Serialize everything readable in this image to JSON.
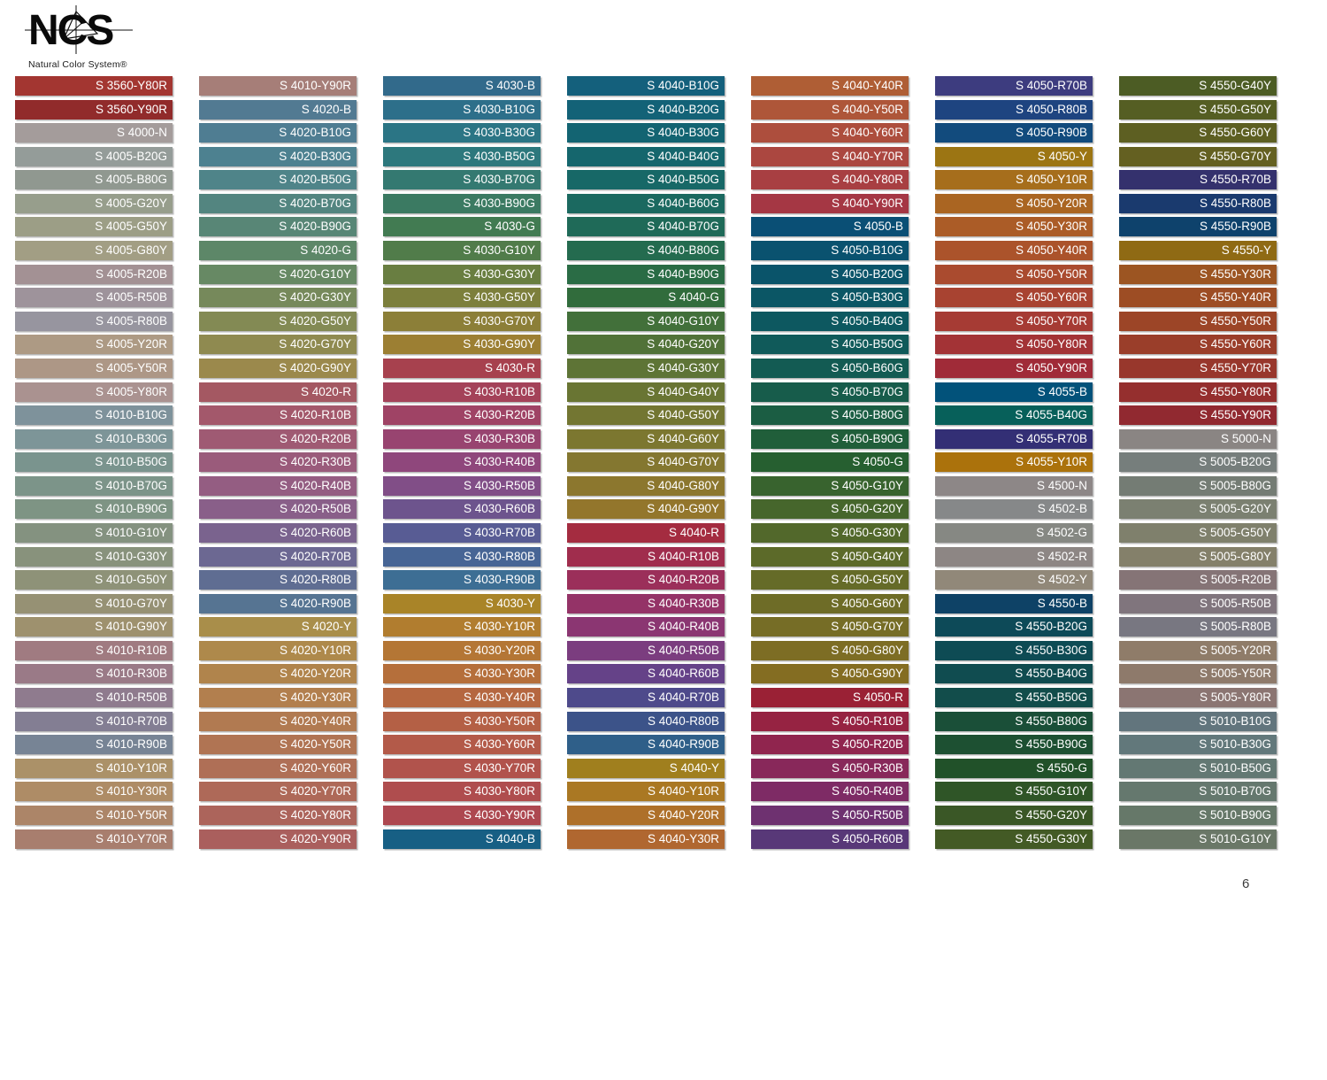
{
  "logo": {
    "text": "NCS",
    "subtitle": "Natural Color System®"
  },
  "page": {
    "number": "6"
  },
  "columns": [
    {
      "swatches": [
        {
          "code": "S 3560-Y80R",
          "color": "#A33631"
        },
        {
          "code": "S 3560-Y90R",
          "color": "#912B2B"
        },
        {
          "code": "S 4000-N",
          "color": "#A49C9B"
        },
        {
          "code": "S 4005-B20G",
          "color": "#949C99"
        },
        {
          "code": "S 4005-B80G",
          "color": "#909890"
        },
        {
          "code": "S 4005-G20Y",
          "color": "#979E8C"
        },
        {
          "code": "S 4005-G50Y",
          "color": "#9C9E86"
        },
        {
          "code": "S 4005-G80Y",
          "color": "#A29E84"
        },
        {
          "code": "S 4005-R20B",
          "color": "#A39194"
        },
        {
          "code": "S 4005-R50B",
          "color": "#9E939B"
        },
        {
          "code": "S 4005-R80B",
          "color": "#97959F"
        },
        {
          "code": "S 4005-Y20R",
          "color": "#AD9A84"
        },
        {
          "code": "S 4005-Y50R",
          "color": "#AD9786"
        },
        {
          "code": "S 4005-Y80R",
          "color": "#AA9290"
        },
        {
          "code": "S 4010-B10G",
          "color": "#7E929B"
        },
        {
          "code": "S 4010-B30G",
          "color": "#7D9598"
        },
        {
          "code": "S 4010-B50G",
          "color": "#7A948E"
        },
        {
          "code": "S 4010-B70G",
          "color": "#7C9489"
        },
        {
          "code": "S 4010-B90G",
          "color": "#7E9484"
        },
        {
          "code": "S 4010-G10Y",
          "color": "#849280"
        },
        {
          "code": "S 4010-G30Y",
          "color": "#88927C"
        },
        {
          "code": "S 4010-G50Y",
          "color": "#8E9278"
        },
        {
          "code": "S 4010-G70Y",
          "color": "#969174"
        },
        {
          "code": "S 4010-G90Y",
          "color": "#9E916E"
        },
        {
          "code": "S 4010-R10B",
          "color": "#A07B81"
        },
        {
          "code": "S 4010-R30B",
          "color": "#9A7A87"
        },
        {
          "code": "S 4010-R50B",
          "color": "#8F7B8E"
        },
        {
          "code": "S 4010-R70B",
          "color": "#837E93"
        },
        {
          "code": "S 4010-R90B",
          "color": "#778495"
        },
        {
          "code": "S 4010-Y10R",
          "color": "#AB9168"
        },
        {
          "code": "S 4010-Y30R",
          "color": "#AE8C66"
        },
        {
          "code": "S 4010-Y50R",
          "color": "#AC8568"
        },
        {
          "code": "S 4010-Y70R",
          "color": "#A87E6E"
        }
      ]
    },
    {
      "swatches": [
        {
          "code": "S 4010-Y90R",
          "color": "#A67E78"
        },
        {
          "code": "S 4020-B",
          "color": "#527A92"
        },
        {
          "code": "S 4020-B10G",
          "color": "#4F7D92"
        },
        {
          "code": "S 4020-B30G",
          "color": "#4D8190"
        },
        {
          "code": "S 4020-B50G",
          "color": "#4F8489"
        },
        {
          "code": "S 4020-B70G",
          "color": "#538580"
        },
        {
          "code": "S 4020-B90G",
          "color": "#588676"
        },
        {
          "code": "S 4020-G",
          "color": "#5D8768"
        },
        {
          "code": "S 4020-G10Y",
          "color": "#678964"
        },
        {
          "code": "S 4020-G30Y",
          "color": "#76895B"
        },
        {
          "code": "S 4020-G50Y",
          "color": "#838A54"
        },
        {
          "code": "S 4020-G70Y",
          "color": "#8F8A50"
        },
        {
          "code": "S 4020-G90Y",
          "color": "#9B894C"
        },
        {
          "code": "S 4020-R",
          "color": "#A45862"
        },
        {
          "code": "S 4020-R10B",
          "color": "#A3586B"
        },
        {
          "code": "S 4020-R20B",
          "color": "#9F5A73"
        },
        {
          "code": "S 4020-R30B",
          "color": "#9A5B7B"
        },
        {
          "code": "S 4020-R40B",
          "color": "#945D82"
        },
        {
          "code": "S 4020-R50B",
          "color": "#895F89"
        },
        {
          "code": "S 4020-R60B",
          "color": "#7A638E"
        },
        {
          "code": "S 4020-R70B",
          "color": "#6C6892"
        },
        {
          "code": "S 4020-R80B",
          "color": "#5F6D92"
        },
        {
          "code": "S 4020-R90B",
          "color": "#567492"
        },
        {
          "code": "S 4020-Y",
          "color": "#A98E4A"
        },
        {
          "code": "S 4020-Y10R",
          "color": "#AE894B"
        },
        {
          "code": "S 4020-Y20R",
          "color": "#B0844C"
        },
        {
          "code": "S 4020-Y30R",
          "color": "#B27F4E"
        },
        {
          "code": "S 4020-Y40R",
          "color": "#B17A51"
        },
        {
          "code": "S 4020-Y50R",
          "color": "#B07453"
        },
        {
          "code": "S 4020-Y60R",
          "color": "#AF6F56"
        },
        {
          "code": "S 4020-Y70R",
          "color": "#AE6958"
        },
        {
          "code": "S 4020-Y80R",
          "color": "#AC645B"
        },
        {
          "code": "S 4020-Y90R",
          "color": "#AA5F5D"
        }
      ]
    },
    {
      "swatches": [
        {
          "code": "S 4030-B",
          "color": "#326A8B"
        },
        {
          "code": "S 4030-B10G",
          "color": "#2D6F8A"
        },
        {
          "code": "S 4030-B30G",
          "color": "#2B7585"
        },
        {
          "code": "S 4030-B50G",
          "color": "#2D787D"
        },
        {
          "code": "S 4030-B70G",
          "color": "#347971"
        },
        {
          "code": "S 4030-B90G",
          "color": "#3B7A62"
        },
        {
          "code": "S 4030-G",
          "color": "#427B52"
        },
        {
          "code": "S 4030-G10Y",
          "color": "#517C4A"
        },
        {
          "code": "S 4030-G30Y",
          "color": "#697E41"
        },
        {
          "code": "S 4030-G50Y",
          "color": "#7C7F3C"
        },
        {
          "code": "S 4030-G70Y",
          "color": "#8C7F38"
        },
        {
          "code": "S 4030-G90Y",
          "color": "#9C7F33"
        },
        {
          "code": "S 4030-R",
          "color": "#A7414E"
        },
        {
          "code": "S 4030-R10B",
          "color": "#A44259"
        },
        {
          "code": "S 4030-R20B",
          "color": "#9F4365"
        },
        {
          "code": "S 4030-R30B",
          "color": "#984470"
        },
        {
          "code": "S 4030-R40B",
          "color": "#8F477C"
        },
        {
          "code": "S 4030-R50B",
          "color": "#814E87"
        },
        {
          "code": "S 4030-R60B",
          "color": "#6D548D"
        },
        {
          "code": "S 4030-R70B",
          "color": "#585C94"
        },
        {
          "code": "S 4030-R80B",
          "color": "#476595"
        },
        {
          "code": "S 4030-R90B",
          "color": "#3D6E94"
        },
        {
          "code": "S 4030-Y",
          "color": "#A98428"
        },
        {
          "code": "S 4030-Y10R",
          "color": "#B17D2F"
        },
        {
          "code": "S 4030-Y20R",
          "color": "#B47635"
        },
        {
          "code": "S 4030-Y30R",
          "color": "#B56F3B"
        },
        {
          "code": "S 4030-Y40R",
          "color": "#B56740"
        },
        {
          "code": "S 4030-Y50R",
          "color": "#B46045"
        },
        {
          "code": "S 4030-Y60R",
          "color": "#B35A49"
        },
        {
          "code": "S 4030-Y70R",
          "color": "#B1534C"
        },
        {
          "code": "S 4030-Y80R",
          "color": "#AF4D4E"
        },
        {
          "code": "S 4030-Y90R",
          "color": "#AD4850"
        },
        {
          "code": "S 4040-B",
          "color": "#175F84"
        }
      ]
    },
    {
      "swatches": [
        {
          "code": "S 4040-B10G",
          "color": "#14607C"
        },
        {
          "code": "S 4040-B20G",
          "color": "#136277"
        },
        {
          "code": "S 4040-B30G",
          "color": "#136472"
        },
        {
          "code": "S 4040-B40G",
          "color": "#15666D"
        },
        {
          "code": "S 4040-B50G",
          "color": "#176867"
        },
        {
          "code": "S 4040-B60G",
          "color": "#1B6960"
        },
        {
          "code": "S 4040-B70G",
          "color": "#1F6A58"
        },
        {
          "code": "S 4040-B80G",
          "color": "#246B4F"
        },
        {
          "code": "S 4040-B90G",
          "color": "#2A6C45"
        },
        {
          "code": "S 4040-G",
          "color": "#316C3C"
        },
        {
          "code": "S 4040-G10Y",
          "color": "#42703A"
        },
        {
          "code": "S 4040-G20Y",
          "color": "#517238"
        },
        {
          "code": "S 4040-G30Y",
          "color": "#5E7436"
        },
        {
          "code": "S 4040-G40Y",
          "color": "#697533"
        },
        {
          "code": "S 4040-G50Y",
          "color": "#737632"
        },
        {
          "code": "S 4040-G60Y",
          "color": "#7C7730"
        },
        {
          "code": "S 4040-G70Y",
          "color": "#847730"
        },
        {
          "code": "S 4040-G80Y",
          "color": "#8C772E"
        },
        {
          "code": "S 4040-G90Y",
          "color": "#93762C"
        },
        {
          "code": "S 4040-R",
          "color": "#A42C40"
        },
        {
          "code": "S 4040-R10B",
          "color": "#A02D4D"
        },
        {
          "code": "S 4040-R20B",
          "color": "#9B2F5A"
        },
        {
          "code": "S 4040-R30B",
          "color": "#943367"
        },
        {
          "code": "S 4040-R40B",
          "color": "#8B3672"
        },
        {
          "code": "S 4040-R50B",
          "color": "#7B3D7F"
        },
        {
          "code": "S 4040-R60B",
          "color": "#654288"
        },
        {
          "code": "S 4040-R70B",
          "color": "#4E4A8B"
        },
        {
          "code": "S 4040-R80B",
          "color": "#3C5389"
        },
        {
          "code": "S 4040-R90B",
          "color": "#2F5F89"
        },
        {
          "code": "S 4040-Y",
          "color": "#A07F1E"
        },
        {
          "code": "S 4040-Y10R",
          "color": "#AA7823"
        },
        {
          "code": "S 4040-Y20R",
          "color": "#AE702A"
        },
        {
          "code": "S 4040-Y30R",
          "color": "#B06730"
        }
      ]
    },
    {
      "swatches": [
        {
          "code": "S 4040-Y40R",
          "color": "#AF5E35"
        },
        {
          "code": "S 4040-Y50R",
          "color": "#AE5639"
        },
        {
          "code": "S 4040-Y60R",
          "color": "#AD4E3D"
        },
        {
          "code": "S 4040-Y70R",
          "color": "#AB4740"
        },
        {
          "code": "S 4040-Y80R",
          "color": "#A83F42"
        },
        {
          "code": "S 4040-Y90R",
          "color": "#A53744"
        },
        {
          "code": "S 4050-B",
          "color": "#0A4F75"
        },
        {
          "code": "S 4050-B10G",
          "color": "#0A526F"
        },
        {
          "code": "S 4050-B20G",
          "color": "#0A546A"
        },
        {
          "code": "S 4050-B30G",
          "color": "#0B5665"
        },
        {
          "code": "S 4050-B40G",
          "color": "#0D5860"
        },
        {
          "code": "S 4050-B50G",
          "color": "#105A5A"
        },
        {
          "code": "S 4050-B60G",
          "color": "#135B53"
        },
        {
          "code": "S 4050-B70G",
          "color": "#175C4B"
        },
        {
          "code": "S 4050-B80G",
          "color": "#1B5D43"
        },
        {
          "code": "S 4050-B90G",
          "color": "#205E3A"
        },
        {
          "code": "S 4050-G",
          "color": "#265F30"
        },
        {
          "code": "S 4050-G10Y",
          "color": "#38632E"
        },
        {
          "code": "S 4050-G20Y",
          "color": "#46662C"
        },
        {
          "code": "S 4050-G30Y",
          "color": "#52682B"
        },
        {
          "code": "S 4050-G40Y",
          "color": "#5C6A29"
        },
        {
          "code": "S 4050-G50Y",
          "color": "#656B28"
        },
        {
          "code": "S 4050-G60Y",
          "color": "#6E6C27"
        },
        {
          "code": "S 4050-G70Y",
          "color": "#766D26"
        },
        {
          "code": "S 4050-G80Y",
          "color": "#7D6D24"
        },
        {
          "code": "S 4050-G90Y",
          "color": "#846D22"
        },
        {
          "code": "S 4050-R",
          "color": "#9A2135"
        },
        {
          "code": "S 4050-R10B",
          "color": "#962342"
        },
        {
          "code": "S 4050-R20B",
          "color": "#90254E"
        },
        {
          "code": "S 4050-R30B",
          "color": "#88285A"
        },
        {
          "code": "S 4050-R40B",
          "color": "#7E2B65"
        },
        {
          "code": "S 4050-R50B",
          "color": "#6E3170"
        },
        {
          "code": "S 4050-R60B",
          "color": "#583878"
        }
      ]
    },
    {
      "swatches": [
        {
          "code": "S 4050-R70B",
          "color": "#3D3C7F"
        },
        {
          "code": "S 4050-R80B",
          "color": "#1E4480"
        },
        {
          "code": "S 4050-R90B",
          "color": "#124B7D"
        },
        {
          "code": "S 4050-Y",
          "color": "#9C7513"
        },
        {
          "code": "S 4050-Y10R",
          "color": "#A66E1C"
        },
        {
          "code": "S 4050-Y20R",
          "color": "#AA6522"
        },
        {
          "code": "S 4050-Y30R",
          "color": "#AB5C27"
        },
        {
          "code": "S 4050-Y40R",
          "color": "#AB532B"
        },
        {
          "code": "S 4050-Y50R",
          "color": "#AA4B2F"
        },
        {
          "code": "S 4050-Y60R",
          "color": "#A84331"
        },
        {
          "code": "S 4050-Y70R",
          "color": "#A63B34"
        },
        {
          "code": "S 4050-Y80R",
          "color": "#A33336"
        },
        {
          "code": "S 4050-Y90R",
          "color": "#A02B38"
        },
        {
          "code": "S 4055-B",
          "color": "#02527A"
        },
        {
          "code": "S 4055-B40G",
          "color": "#07605A"
        },
        {
          "code": "S 4055-R70B",
          "color": "#332F75"
        },
        {
          "code": "S 4055-Y10R",
          "color": "#AB720C"
        },
        {
          "code": "S 4500-N",
          "color": "#8D8787"
        },
        {
          "code": "S 4502-B",
          "color": "#868889"
        },
        {
          "code": "S 4502-G",
          "color": "#868883"
        },
        {
          "code": "S 4502-R",
          "color": "#8D8684"
        },
        {
          "code": "S 4502-Y",
          "color": "#918879"
        },
        {
          "code": "S 4550-B",
          "color": "#0E4266"
        },
        {
          "code": "S 4550-B20G",
          "color": "#0D4A58"
        },
        {
          "code": "S 4550-B30G",
          "color": "#0E4B54"
        },
        {
          "code": "S 4550-B40G",
          "color": "#104C50"
        },
        {
          "code": "S 4550-B50G",
          "color": "#124D4B"
        },
        {
          "code": "S 4550-B80G",
          "color": "#1A4F38"
        },
        {
          "code": "S 4550-B90G",
          "color": "#1D5032"
        },
        {
          "code": "S 4550-G",
          "color": "#215129"
        },
        {
          "code": "S 4550-G10Y",
          "color": "#2F5527"
        },
        {
          "code": "S 4550-G20Y",
          "color": "#3A5726"
        },
        {
          "code": "S 4550-G30Y",
          "color": "#435A25"
        }
      ]
    },
    {
      "swatches": [
        {
          "code": "S 4550-G40Y",
          "color": "#4C5C24"
        },
        {
          "code": "S 4550-G50Y",
          "color": "#555E23"
        },
        {
          "code": "S 4550-G60Y",
          "color": "#5D5F22"
        },
        {
          "code": "S 4550-G70Y",
          "color": "#646021"
        },
        {
          "code": "S 4550-R70B",
          "color": "#34316D"
        },
        {
          "code": "S 4550-R80B",
          "color": "#1A3A6E"
        },
        {
          "code": "S 4550-R90B",
          "color": "#0E426C"
        },
        {
          "code": "S 4550-Y",
          "color": "#8F6A14"
        },
        {
          "code": "S 4550-Y30R",
          "color": "#9C5522"
        },
        {
          "code": "S 4550-Y40R",
          "color": "#9D4D24"
        },
        {
          "code": "S 4550-Y50R",
          "color": "#9C4527"
        },
        {
          "code": "S 4550-Y60R",
          "color": "#9A3E2A"
        },
        {
          "code": "S 4550-Y70R",
          "color": "#98372C"
        },
        {
          "code": "S 4550-Y80R",
          "color": "#952F2E"
        },
        {
          "code": "S 4550-Y90R",
          "color": "#912930"
        },
        {
          "code": "S 5000-N",
          "color": "#8A8583"
        },
        {
          "code": "S 5005-B20G",
          "color": "#767E7C"
        },
        {
          "code": "S 5005-B80G",
          "color": "#747C74"
        },
        {
          "code": "S 5005-G20Y",
          "color": "#7B8071"
        },
        {
          "code": "S 5005-G50Y",
          "color": "#7F806C"
        },
        {
          "code": "S 5005-G80Y",
          "color": "#84806A"
        },
        {
          "code": "S 5005-R20B",
          "color": "#857476"
        },
        {
          "code": "S 5005-R50B",
          "color": "#80757D"
        },
        {
          "code": "S 5005-R80B",
          "color": "#787781"
        },
        {
          "code": "S 5005-Y20R",
          "color": "#8F7C69"
        },
        {
          "code": "S 5005-Y50R",
          "color": "#8E7A6B"
        },
        {
          "code": "S 5005-Y80R",
          "color": "#8B7572"
        },
        {
          "code": "S 5010-B10G",
          "color": "#62757D"
        },
        {
          "code": "S 5010-B30G",
          "color": "#62787B"
        },
        {
          "code": "S 5010-B50G",
          "color": "#637873"
        },
        {
          "code": "S 5010-B70G",
          "color": "#65786E"
        },
        {
          "code": "S 5010-B90G",
          "color": "#667869"
        },
        {
          "code": "S 5010-G10Y",
          "color": "#6A7767"
        }
      ]
    }
  ]
}
